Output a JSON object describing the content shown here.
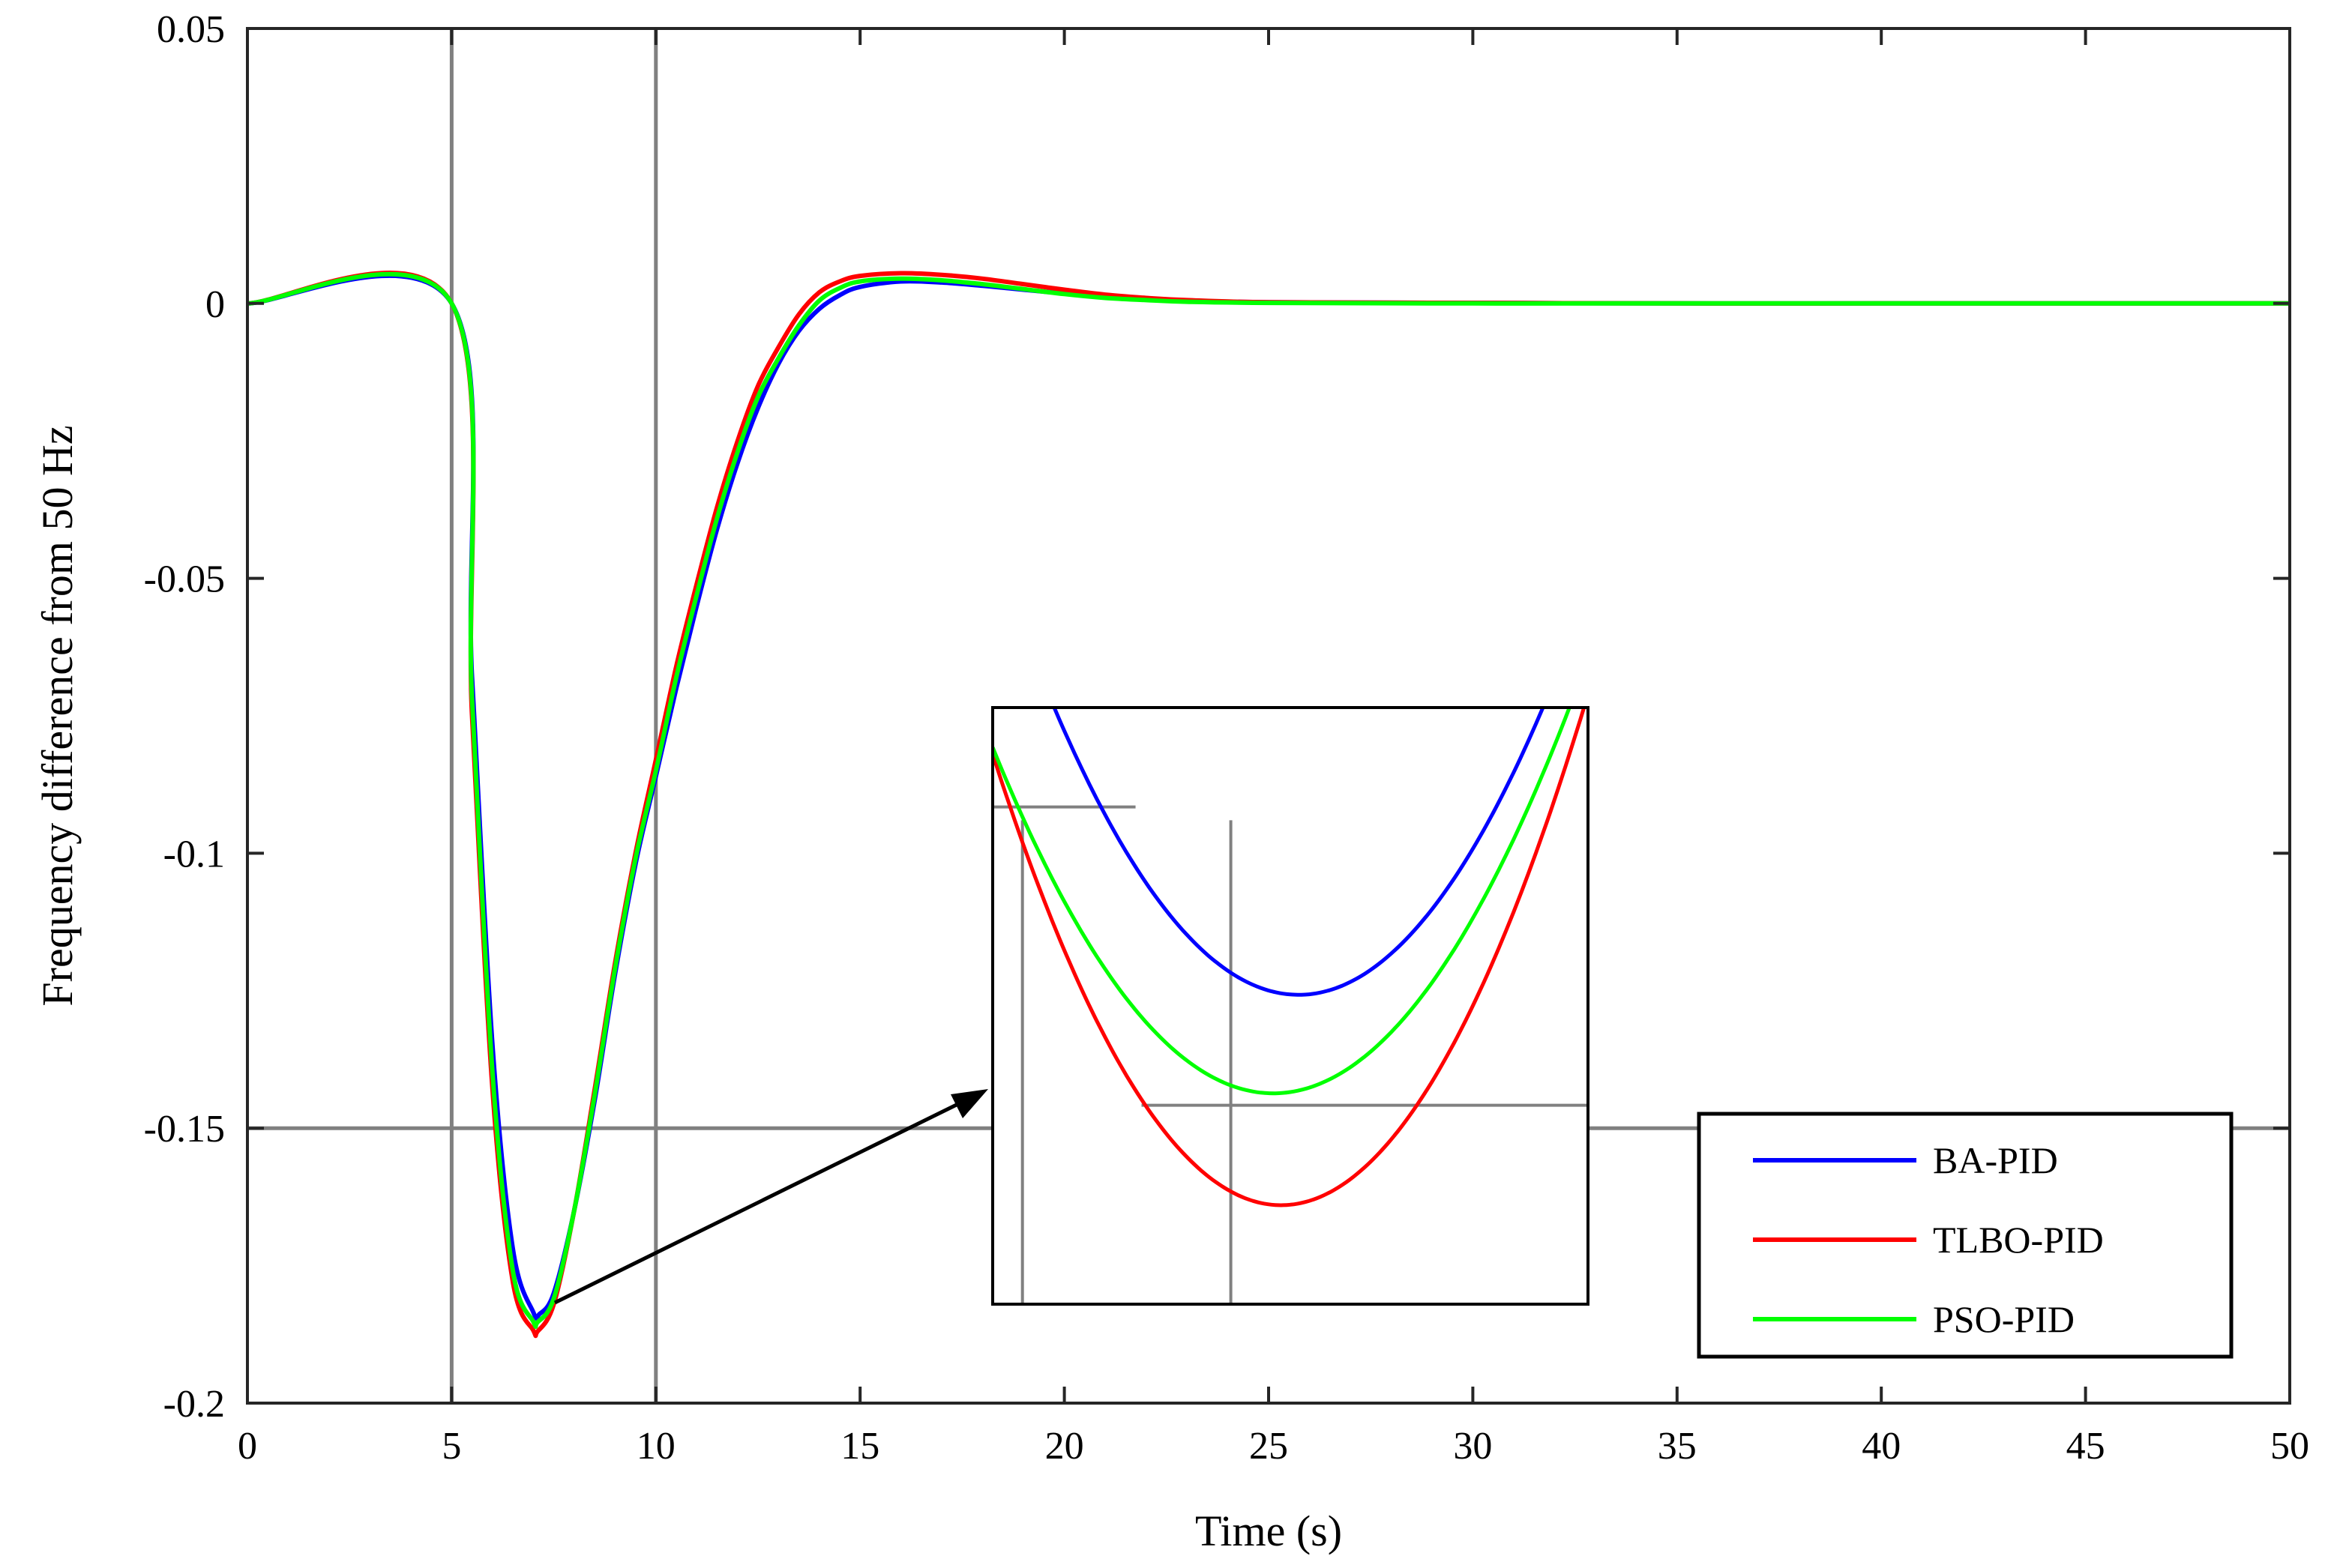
{
  "chart_data": {
    "type": "line",
    "title": "",
    "xlabel": "Time (s)",
    "ylabel": "Frequency difference from 50 Hz",
    "xlim": [
      0,
      50
    ],
    "ylim": [
      -0.2,
      0.05
    ],
    "xticks": [
      0,
      5,
      10,
      15,
      20,
      25,
      30,
      35,
      40,
      45,
      50
    ],
    "xtick_labels": [
      "0",
      "5",
      "10",
      "15",
      "20",
      "25",
      "30",
      "35",
      "40",
      "45",
      "50"
    ],
    "yticks": [
      0.05,
      0,
      -0.05,
      -0.1,
      -0.15,
      -0.2
    ],
    "ytick_labels": [
      "0.05",
      "0",
      "-0.05",
      "-0.1",
      "-0.15",
      "-0.2"
    ],
    "reference_lines": {
      "x": [
        5,
        10
      ],
      "y": [
        -0.15
      ]
    },
    "legend": {
      "position": "bottom-right",
      "entries": [
        "BA-PID",
        "TLBO-PID",
        "PSO-PID"
      ]
    },
    "series": [
      {
        "name": "BA-PID",
        "color": "#0000ff",
        "x": [
          0,
          5,
          5.5,
          6,
          6.5,
          7,
          7.15,
          7.5,
          8,
          8.5,
          9,
          9.5,
          10,
          10.5,
          11,
          11.5,
          12,
          12.5,
          13,
          13.5,
          14,
          14.5,
          15,
          16,
          17,
          18,
          19,
          20,
          21,
          22,
          23,
          25,
          30,
          35,
          40,
          45,
          50
        ],
        "values": [
          0,
          0,
          -0.068,
          -0.135,
          -0.172,
          -0.1835,
          -0.1838,
          -0.18,
          -0.165,
          -0.145,
          -0.122,
          -0.102,
          -0.086,
          -0.07,
          -0.055,
          -0.041,
          -0.029,
          -0.019,
          -0.011,
          -0.005,
          -0.001,
          0.0015,
          0.003,
          0.004,
          0.0038,
          0.0032,
          0.0025,
          0.0018,
          0.0012,
          0.0008,
          0.0005,
          0.0002,
          0.0001,
          0,
          0,
          0,
          0
        ]
      },
      {
        "name": "TLBO-PID",
        "color": "#ff0000",
        "x": [
          0,
          5,
          5.5,
          6,
          6.5,
          7,
          7.1,
          7.5,
          8,
          8.5,
          9,
          9.5,
          10,
          10.5,
          11,
          11.5,
          12,
          12.5,
          13,
          13.5,
          14,
          14.5,
          15,
          16,
          17,
          18,
          19,
          20,
          21,
          22,
          23,
          25,
          30,
          35,
          40,
          45,
          50
        ],
        "values": [
          0,
          0,
          -0.075,
          -0.143,
          -0.178,
          -0.1868,
          -0.187,
          -0.182,
          -0.165,
          -0.143,
          -0.12,
          -0.1,
          -0.083,
          -0.066,
          -0.051,
          -0.037,
          -0.025,
          -0.015,
          -0.008,
          -0.002,
          0.002,
          0.004,
          0.005,
          0.0055,
          0.0052,
          0.0045,
          0.0035,
          0.0025,
          0.0016,
          0.001,
          0.0006,
          0.0002,
          0.0001,
          0,
          0,
          0,
          0
        ]
      },
      {
        "name": "PSO-PID",
        "color": "#00ff00",
        "x": [
          0,
          5,
          5.5,
          6,
          6.5,
          7,
          7.1,
          7.5,
          8,
          8.5,
          9,
          9.5,
          10,
          10.5,
          11,
          11.5,
          12,
          12.5,
          13,
          13.5,
          14,
          14.5,
          15,
          16,
          17,
          18,
          19,
          20,
          21,
          22,
          23,
          25,
          30,
          35,
          40,
          45,
          50
        ],
        "values": [
          0,
          0,
          -0.072,
          -0.14,
          -0.176,
          -0.1852,
          -0.1853,
          -0.181,
          -0.165,
          -0.144,
          -0.121,
          -0.101,
          -0.085,
          -0.068,
          -0.053,
          -0.039,
          -0.027,
          -0.017,
          -0.01,
          -0.004,
          0.0005,
          0.0028,
          0.004,
          0.0045,
          0.0042,
          0.0035,
          0.0026,
          0.0017,
          0.001,
          0.0006,
          0.0003,
          0.0001,
          0,
          0,
          0,
          0,
          0
        ]
      }
    ],
    "inset": {
      "xlim": [
        6.6,
        7.6
      ],
      "ylim": [
        -0.1885,
        -0.1795
      ],
      "reference_lines": [
        {
          "orientation": "vertical",
          "value": 6.65,
          "from": -0.1885,
          "to": -0.1812
        },
        {
          "orientation": "horizontal",
          "value": -0.181,
          "from": 6.6,
          "to": 6.84
        },
        {
          "orientation": "vertical",
          "value": 7.0,
          "from": -0.1885,
          "to": -0.1812
        },
        {
          "orientation": "horizontal",
          "value": -0.1855,
          "from": 6.85,
          "to": 7.6
        }
      ]
    }
  }
}
